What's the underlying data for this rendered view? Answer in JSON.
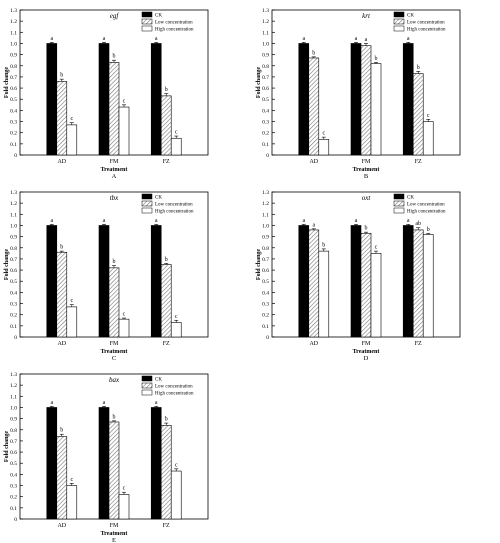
{
  "chart_data": [
    {
      "type": "bar",
      "title": "egf",
      "panel_label": "A",
      "xlabel": "Treatment",
      "ylabel": "Fold change",
      "categories": [
        "AD",
        "FM",
        "FZ"
      ],
      "ylim": [
        0,
        1.3
      ],
      "yticks": [
        "0",
        "0.1",
        "0.2",
        "0.3",
        "0.4",
        "0.5",
        "0.6",
        "0.7",
        "0.8",
        "0.9",
        "1.0",
        "1.1",
        "1.2",
        "1.3"
      ],
      "legend_position": "top-right",
      "series": [
        {
          "name": "CK",
          "values": [
            1.0,
            1.0,
            1.0
          ],
          "errors": [
            0.01,
            0.01,
            0.01
          ],
          "letters": [
            "a",
            "a",
            "a"
          ]
        },
        {
          "name": "Low concentration",
          "values": [
            0.66,
            0.83,
            0.53
          ],
          "errors": [
            0.02,
            0.02,
            0.02
          ],
          "letters": [
            "b",
            "b",
            "b"
          ]
        },
        {
          "name": "High concentration",
          "values": [
            0.27,
            0.43,
            0.15
          ],
          "errors": [
            0.02,
            0.02,
            0.02
          ],
          "letters": [
            "c",
            "c",
            "c"
          ]
        }
      ]
    },
    {
      "type": "bar",
      "title": "krt",
      "panel_label": "B",
      "xlabel": "Treatment",
      "ylabel": "Fold change",
      "categories": [
        "AD",
        "FM",
        "FZ"
      ],
      "ylim": [
        0,
        1.3
      ],
      "yticks": [
        "0",
        "0.1",
        "0.2",
        "0.3",
        "0.4",
        "0.5",
        "0.6",
        "0.7",
        "0.8",
        "0.9",
        "1.0",
        "1.1",
        "1.2",
        "1.3"
      ],
      "legend_position": "top-right",
      "series": [
        {
          "name": "CK",
          "values": [
            1.0,
            1.0,
            1.0
          ],
          "errors": [
            0.01,
            0.01,
            0.01
          ],
          "letters": [
            "a",
            "a",
            "a"
          ]
        },
        {
          "name": "Low concentration",
          "values": [
            0.87,
            0.98,
            0.73
          ],
          "errors": [
            0.01,
            0.02,
            0.02
          ],
          "letters": [
            "b",
            "a",
            "b"
          ]
        },
        {
          "name": "High concentration",
          "values": [
            0.14,
            0.82,
            0.3
          ],
          "errors": [
            0.02,
            0.01,
            0.02
          ],
          "letters": [
            "c",
            "b",
            "c"
          ]
        }
      ]
    },
    {
      "type": "bar",
      "title": "tbx",
      "panel_label": "C",
      "xlabel": "Treatment",
      "ylabel": "Fold change",
      "categories": [
        "AD",
        "FM",
        "FZ"
      ],
      "ylim": [
        0,
        1.3
      ],
      "yticks": [
        "0",
        "0.1",
        "0.2",
        "0.3",
        "0.4",
        "0.5",
        "0.6",
        "0.7",
        "0.8",
        "0.9",
        "1.0",
        "1.1",
        "1.2",
        "1.3"
      ],
      "legend_position": "top-right",
      "series": [
        {
          "name": "CK",
          "values": [
            1.0,
            1.0,
            1.0
          ],
          "errors": [
            0.01,
            0.01,
            0.01
          ],
          "letters": [
            "a",
            "a",
            "a"
          ]
        },
        {
          "name": "Low concentration",
          "values": [
            0.76,
            0.62,
            0.65
          ],
          "errors": [
            0.01,
            0.02,
            0.01
          ],
          "letters": [
            "b",
            "b",
            "b"
          ]
        },
        {
          "name": "High concentration",
          "values": [
            0.27,
            0.16,
            0.13
          ],
          "errors": [
            0.02,
            0.01,
            0.02
          ],
          "letters": [
            "c",
            "c",
            "c"
          ]
        }
      ]
    },
    {
      "type": "bar",
      "title": "oxt",
      "panel_label": "D",
      "xlabel": "Treatment",
      "ylabel": "Fold change",
      "categories": [
        "AD",
        "FM",
        "FZ"
      ],
      "ylim": [
        0,
        1.3
      ],
      "yticks": [
        "0",
        "0.1",
        "0.2",
        "0.3",
        "0.4",
        "0.5",
        "0.6",
        "0.7",
        "0.8",
        "0.9",
        "1.0",
        "1.1",
        "1.2",
        "1.3"
      ],
      "legend_position": "top-right",
      "series": [
        {
          "name": "CK",
          "values": [
            1.0,
            1.0,
            1.0
          ],
          "errors": [
            0.01,
            0.01,
            0.01
          ],
          "letters": [
            "a",
            "a",
            "a"
          ]
        },
        {
          "name": "Low concentration",
          "values": [
            0.96,
            0.93,
            0.96
          ],
          "errors": [
            0.01,
            0.01,
            0.02
          ],
          "letters": [
            "a",
            "b",
            "ab"
          ]
        },
        {
          "name": "High concentration",
          "values": [
            0.77,
            0.75,
            0.92
          ],
          "errors": [
            0.02,
            0.02,
            0.01
          ],
          "letters": [
            "b",
            "c",
            "b"
          ]
        }
      ]
    },
    {
      "type": "bar",
      "title": "bax",
      "panel_label": "E",
      "xlabel": "Treatment",
      "ylabel": "Fold change",
      "categories": [
        "AD",
        "FM",
        "FZ"
      ],
      "ylim": [
        0,
        1.3
      ],
      "yticks": [
        "0",
        "0.1",
        "0.2",
        "0.3",
        "0.4",
        "0.5",
        "0.6",
        "0.7",
        "0.8",
        "0.9",
        "1.0",
        "1.1",
        "1.2",
        "1.3"
      ],
      "legend_position": "top-right",
      "series": [
        {
          "name": "CK",
          "values": [
            1.0,
            1.0,
            1.0
          ],
          "errors": [
            0.01,
            0.01,
            0.01
          ],
          "letters": [
            "a",
            "a",
            "a"
          ]
        },
        {
          "name": "Low concentration",
          "values": [
            0.74,
            0.87,
            0.84
          ],
          "errors": [
            0.02,
            0.01,
            0.02
          ],
          "letters": [
            "b",
            "b",
            "b"
          ]
        },
        {
          "name": "High concentration",
          "values": [
            0.3,
            0.22,
            0.43
          ],
          "errors": [
            0.02,
            0.02,
            0.02
          ],
          "letters": [
            "c",
            "c",
            "c"
          ]
        }
      ]
    }
  ],
  "colors": {
    "ck": "#000000",
    "low_hatch": "#7a7a7a",
    "low_bg": "#ffffff",
    "high": "#ffffff",
    "axis": "#000000"
  }
}
